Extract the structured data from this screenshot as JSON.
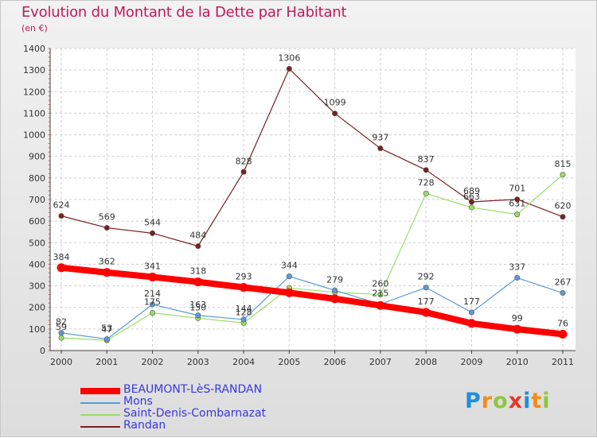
{
  "header": {
    "title": "Evolution du Montant de la Dette par Habitant",
    "subtitle": "(en €)"
  },
  "logo": {
    "letters": [
      "P",
      "r",
      "o",
      "x",
      "i",
      "t",
      "i"
    ],
    "colors": [
      "#1f8fd8",
      "#f28c1a",
      "#8dc63f",
      "#e23a2e",
      "#1f8fd8",
      "#f28c1a",
      "#8dc63f"
    ]
  },
  "chart_data": {
    "type": "line",
    "title": "Evolution du Montant de la Dette par Habitant",
    "subtitle": "(en €)",
    "xlabel": "",
    "ylabel": "",
    "categories": [
      "2000",
      "2001",
      "2002",
      "2003",
      "2004",
      "2005",
      "2006",
      "2007",
      "2008",
      "2009",
      "2010",
      "2011"
    ],
    "ylim": [
      0,
      1400
    ],
    "yticks": [
      0,
      100,
      200,
      300,
      400,
      500,
      600,
      700,
      800,
      900,
      1000,
      1100,
      1200,
      1300,
      1400
    ],
    "grid": true,
    "legend_position": "bottom-left",
    "series": [
      {
        "name": "BEAUMONT-LèS-RANDAN",
        "color": "#ff0000",
        "values": [
          384,
          362,
          341,
          318,
          293,
          268,
          240,
          209,
          177,
          126,
          99,
          76
        ],
        "labels": [
          "384",
          "362",
          "341",
          "318",
          "293",
          "",
          "",
          "",
          "177",
          "",
          "99",
          "76"
        ]
      },
      {
        "name": "Mons",
        "color": "#5b9bd5",
        "values": [
          82,
          53,
          214,
          163,
          144,
          344,
          279,
          215,
          292,
          177,
          337,
          267
        ],
        "labels": [
          "82",
          "53",
          "214",
          "163",
          "144",
          "344",
          "279",
          "215",
          "292",
          "177",
          "337",
          "267"
        ]
      },
      {
        "name": "Saint-Denis-Combarnazat",
        "color": "#99dd66",
        "values": [
          59,
          47,
          175,
          150,
          128,
          290,
          270,
          260,
          728,
          663,
          631,
          815
        ],
        "labels": [
          "59",
          "47",
          "175",
          "150",
          "128",
          "",
          "",
          "260",
          "728",
          "663",
          "631",
          "815"
        ]
      },
      {
        "name": "Randan",
        "color": "#7a2020",
        "values": [
          624,
          569,
          544,
          484,
          828,
          1306,
          1099,
          937,
          837,
          689,
          701,
          620
        ],
        "labels": [
          "624",
          "569",
          "544",
          "484",
          "828",
          "1306",
          "1099",
          "937",
          "837",
          "689",
          "701",
          "620"
        ]
      }
    ]
  }
}
